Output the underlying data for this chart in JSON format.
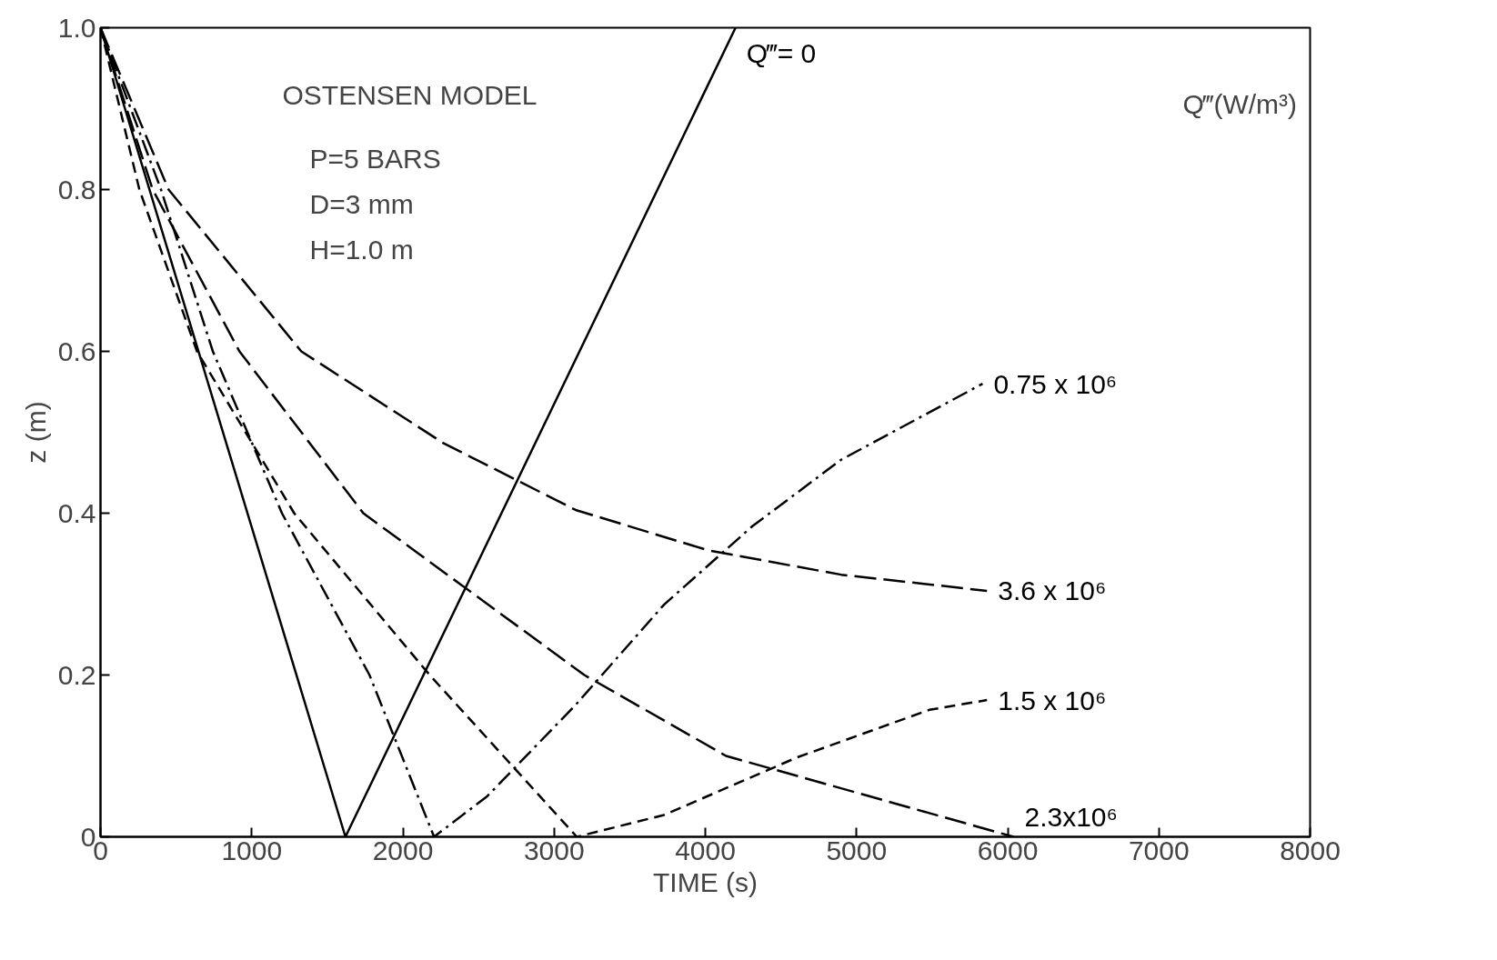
{
  "chart_data": {
    "type": "line",
    "xlabel": "TIME (s)",
    "ylabel": "z (m)",
    "legend_title": "Q‴(W/m³)",
    "xlim": [
      0,
      8000
    ],
    "ylim": [
      0,
      1.0
    ],
    "xticks": [
      0,
      1000,
      2000,
      3000,
      4000,
      5000,
      6000,
      7000,
      8000
    ],
    "yticks": [
      0,
      0.2,
      0.4,
      0.6,
      0.8,
      {
        "value": 1.0,
        "label": "1.0"
      }
    ],
    "grid": false,
    "marker": "none",
    "annotations": [
      "OSTENSEN MODEL",
      "P=5 BARS",
      "D=3 mm",
      "H=1.0 m"
    ],
    "series": [
      {
        "name": "Q‴= 0",
        "color": "#000000",
        "line_style": "solid",
        "x": [
          0,
          1620,
          4200
        ],
        "values": [
          1.0,
          0,
          1.0
        ]
      },
      {
        "name": "0.75 x 10⁶",
        "color": "#000000",
        "line_style": "dashdot",
        "x": [
          0,
          400,
          743,
          1200,
          1779,
          2206,
          2557,
          3142,
          3727,
          4312,
          4898,
          5834
        ],
        "values": [
          1.0,
          0.8,
          0.6,
          0.4,
          0.2,
          0,
          0.05,
          0.163,
          0.287,
          0.384,
          0.466,
          0.56
        ]
      },
      {
        "name": "3.6 x 10⁶",
        "color": "#000000",
        "line_style": "longdash",
        "x": [
          0,
          450,
          1328,
          2264,
          3142,
          4020,
          4898,
          5863
        ],
        "values": [
          1.0,
          0.8,
          0.6,
          0.487,
          0.404,
          0.354,
          0.324,
          0.304
        ]
      },
      {
        "name": "1.5 x 10⁶",
        "color": "#000000",
        "line_style": "dashed",
        "x": [
          0,
          257,
          638,
          1281,
          2177,
          3150,
          3727,
          4605,
          5483,
          5863
        ],
        "values": [
          1.0,
          0.8,
          0.6,
          0.4,
          0.2,
          0,
          0.027,
          0.098,
          0.157,
          0.169
        ]
      },
      {
        "name": "2.3x10⁶",
        "color": "#000000",
        "line_style": "longdash",
        "x": [
          0,
          345,
          919,
          1738,
          3200,
          4137,
          6039
        ],
        "values": [
          1.0,
          0.8,
          0.6,
          0.4,
          0.2,
          0.1,
          0
        ]
      }
    ]
  }
}
